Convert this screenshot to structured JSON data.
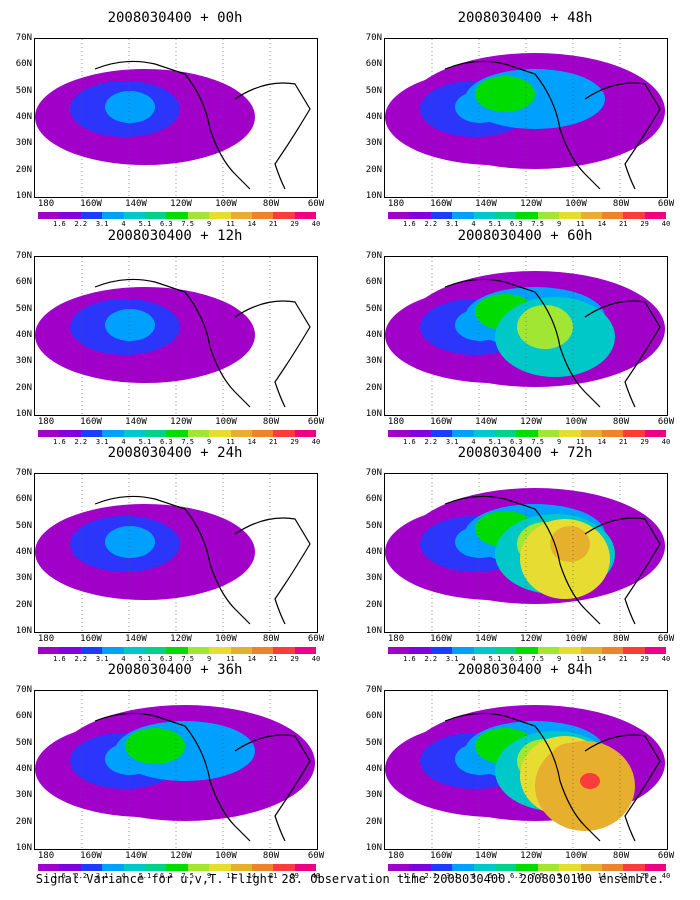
{
  "caption": "Signal Variance for u,v,T. Flight 28. Observation time 2008030400. 2008030100 ensemble.",
  "chart_data": {
    "type": "heatmap",
    "y_ticks": [
      "10N",
      "20N",
      "30N",
      "40N",
      "50N",
      "60N",
      "70N"
    ],
    "x_ticks": [
      "180",
      "160W",
      "140W",
      "120W",
      "100W",
      "80W",
      "60W"
    ],
    "colorbar_labels": [
      "1.6",
      "2.2",
      "3.1",
      "4",
      "5.1",
      "6.3",
      "7.5",
      "9",
      "11",
      "14",
      "21",
      "29",
      "40"
    ],
    "colorbar_colors": [
      "#a000c8",
      "#8200dc",
      "#1e3cff",
      "#00a0ff",
      "#00c8c8",
      "#00d28c",
      "#00dc00",
      "#a0e632",
      "#e6dc32",
      "#e6af2d",
      "#f08228",
      "#fa3c3c",
      "#f00082"
    ],
    "panels": [
      {
        "title": "2008030400 + 00h",
        "level": 1
      },
      {
        "title": "2008030400 + 48h",
        "level": 2
      },
      {
        "title": "2008030400 + 12h",
        "level": 1
      },
      {
        "title": "2008030400 + 60h",
        "level": 3
      },
      {
        "title": "2008030400 + 24h",
        "level": 1
      },
      {
        "title": "2008030400 + 72h",
        "level": 4
      },
      {
        "title": "2008030400 + 36h",
        "level": 2
      },
      {
        "title": "2008030400 + 84h",
        "level": 5
      }
    ]
  }
}
